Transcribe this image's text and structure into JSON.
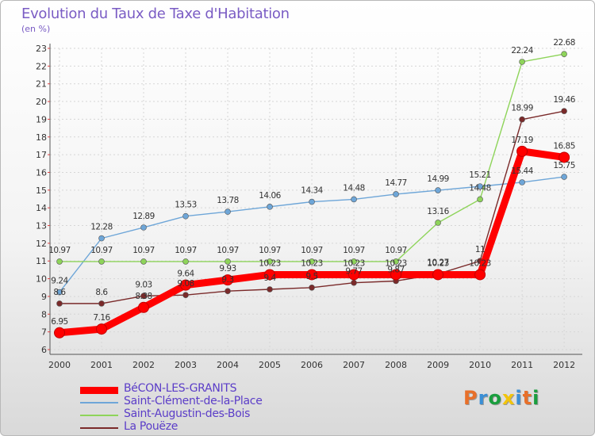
{
  "title": "Evolution du Taux de Taxe d'Habitation",
  "subtitle": "(en %)",
  "logo": {
    "text": "Proxiti",
    "colors": [
      "#e8702a",
      "#3a8fd6",
      "#1a9e3e",
      "#f2c40c",
      "#3a8fd6",
      "#e8702a",
      "#1a9e3e"
    ]
  },
  "chart_data": {
    "type": "line",
    "x": [
      "2000",
      "2001",
      "2002",
      "2003",
      "2004",
      "2005",
      "2006",
      "2007",
      "2008",
      "2009",
      "2010",
      "2011",
      "2012"
    ],
    "ylim": [
      6,
      23
    ],
    "yticks": [
      "6",
      "7",
      "8",
      "9",
      "10",
      "11",
      "12",
      "13",
      "14",
      "15",
      "16",
      "17",
      "18",
      "19",
      "20",
      "21",
      "22",
      "23"
    ],
    "grid": true,
    "legend_position": "bottom-left",
    "series": [
      {
        "name": "BéCON-LES-GRANITS",
        "color": "#ff0000",
        "values": [
          6.95,
          7.16,
          8.38,
          9.64,
          9.93,
          10.23,
          10.23,
          10.23,
          10.23,
          10.23,
          10.23,
          17.19,
          16.85
        ],
        "labels": [
          "6.95",
          "7.16",
          "8.38",
          "9.64",
          "9.93",
          "10.23",
          "10.23",
          "10.23",
          "10.23",
          "10.23",
          "10.23",
          "17.19",
          "16.85"
        ]
      },
      {
        "name": "Saint-Clément-de-la-Place",
        "color": "#6ea6d8",
        "values": [
          9.24,
          12.28,
          12.89,
          13.53,
          13.78,
          14.06,
          14.34,
          14.48,
          14.77,
          14.99,
          15.21,
          15.44,
          15.75
        ],
        "labels": [
          "9.24",
          "12.28",
          "12.89",
          "13.53",
          "13.78",
          "14.06",
          "14.34",
          "14.48",
          "14.77",
          "14.99",
          "15.21",
          "15.44",
          "15.75"
        ]
      },
      {
        "name": "Saint-Augustin-des-Bois",
        "color": "#8ed45a",
        "values": [
          10.97,
          10.97,
          10.97,
          10.97,
          10.97,
          10.97,
          10.97,
          10.97,
          10.97,
          13.16,
          14.48,
          22.24,
          22.68
        ],
        "labels": [
          "10.97",
          "10.97",
          "10.97",
          "10.97",
          "10.97",
          "10.97",
          "10.97",
          "10.97",
          "10.97",
          "13.16",
          "14.48",
          "22.24",
          "22.68"
        ]
      },
      {
        "name": "La Pouëze",
        "color": "#7a2a2a",
        "values": [
          8.6,
          8.6,
          9.03,
          9.08,
          9.3,
          9.4,
          9.5,
          9.77,
          9.87,
          10.27,
          11,
          18.99,
          19.46
        ],
        "labels": [
          "8.6",
          "8.6",
          "9.03",
          "9.08",
          "9.3",
          "9.4",
          "9.5",
          "9.77",
          "9.87",
          "10.27",
          "11",
          "18.99",
          "19.46"
        ]
      }
    ]
  }
}
